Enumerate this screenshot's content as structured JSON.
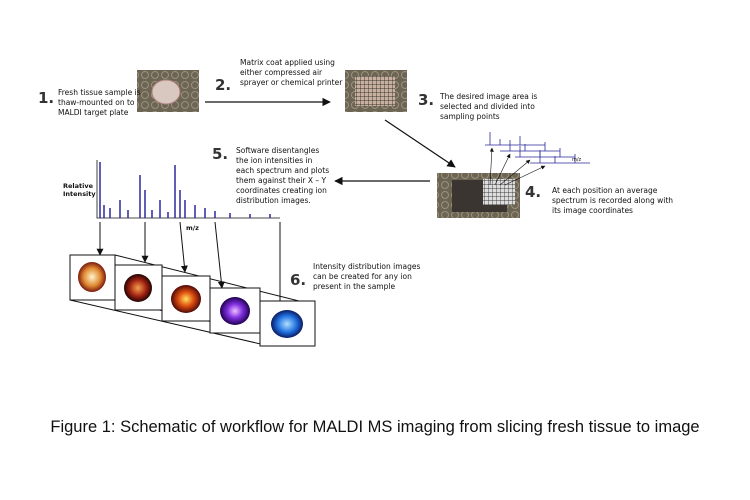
{
  "steps": [
    {
      "number": "1.",
      "lines": [
        "Fresh tissue sample is",
        "thaw-mounted on to",
        "MALDI target plate"
      ]
    },
    {
      "number": "2.",
      "lines": [
        "Matrix coat applied using",
        "either compressed air",
        "sprayer or chemical printer"
      ]
    },
    {
      "number": "3.",
      "lines": [
        "The desired image area is",
        "selected and divided into",
        "sampling points"
      ]
    },
    {
      "number": "4.",
      "lines": [
        "At each position an average",
        "spectrum is recorded along with",
        "its image coordinates"
      ]
    },
    {
      "number": "5.",
      "lines": [
        "Software disentangles",
        "the ion intensities in",
        "each spectrum and plots",
        "them against their  X – Y",
        "coordinates creating ion",
        "distribution images."
      ]
    },
    {
      "number": "6.",
      "lines": [
        "Intensity distribution images",
        "can be created for any ion",
        "present in the sample"
      ]
    }
  ],
  "spectrum": {
    "y_label": "Relative Intensity",
    "x_label": "m/z"
  },
  "inset_label": "m/z",
  "caption": "Figure 1: Schematic of workflow for MALDI MS imaging from slicing fresh tissue to image"
}
